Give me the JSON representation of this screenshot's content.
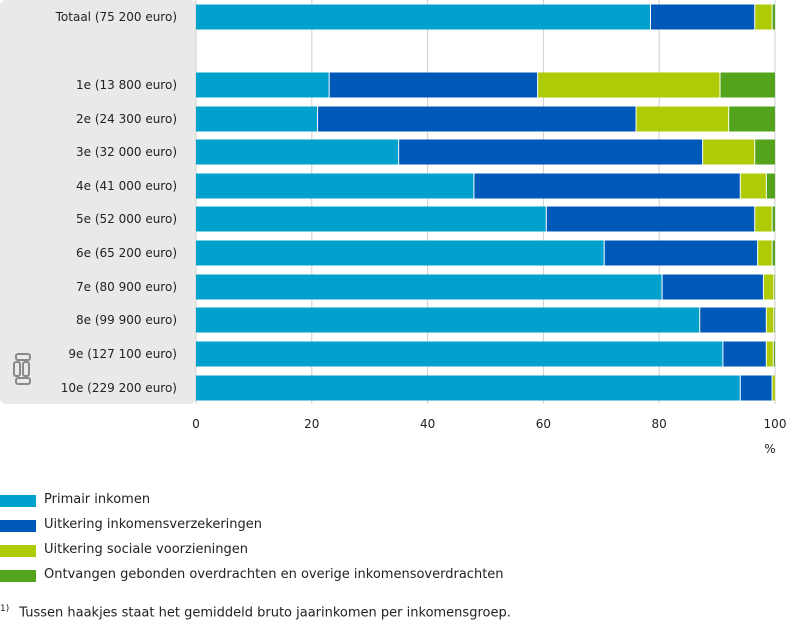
{
  "colors": {
    "primair": "#00a1cd",
    "verzekeringen": "#0058b8",
    "voorzieningen": "#afcb05",
    "overdrachten": "#53a31d",
    "panel": "#e9e9e9",
    "grid": "#cfcfcf"
  },
  "chart_data": {
    "type": "bar",
    "orientation": "horizontal",
    "stacked": true,
    "categories": [
      "Totaal (75 200 euro)",
      "1e (13 800 euro)",
      "2e (24 300 euro)",
      "3e (32 000 euro)",
      "4e (41 000 euro)",
      "5e (52 000 euro)",
      "6e (65 200 euro)",
      "7e (80 900 euro)",
      "8e (99 900 euro)",
      "9e (127 100 euro)",
      "10e (229 200 euro)"
    ],
    "series": [
      {
        "name": "Primair inkomen",
        "color_key": "primair",
        "values": [
          78.5,
          23,
          21,
          35,
          48,
          60.5,
          70.5,
          80.5,
          87,
          91,
          94
        ]
      },
      {
        "name": "Uitkering inkomensverzekeringen",
        "color_key": "verzekeringen",
        "values": [
          18,
          36,
          55,
          52.5,
          46,
          36,
          26.5,
          17.5,
          11.5,
          7.5,
          5.5
        ]
      },
      {
        "name": "Uitkering sociale voorzieningen",
        "color_key": "voorzieningen",
        "values": [
          3,
          31.5,
          16,
          9,
          4.5,
          3,
          2.5,
          1.8,
          1.3,
          1.2,
          0.7
        ]
      },
      {
        "name": "Ontvangen gebonden overdrachten en overige inkomensoverdrachten",
        "color_key": "overdrachten",
        "values": [
          0.5,
          9.5,
          8,
          3.5,
          1.5,
          0.5,
          0.5,
          0.2,
          0.2,
          0.3,
          0.3
        ]
      }
    ],
    "xlim": [
      0,
      100
    ],
    "xticks": [
      "0",
      "20",
      "40",
      "60",
      "80",
      "100"
    ],
    "xunit": "%"
  },
  "legend": [
    {
      "label": "Primair inkomen",
      "color_key": "primair"
    },
    {
      "label": "Uitkering inkomensverzekeringen",
      "color_key": "verzekeringen"
    },
    {
      "label": "Uitkering sociale voorzieningen",
      "color_key": "voorzieningen"
    },
    {
      "label": "Ontvangen gebonden overdrachten en overige inkomensoverdrachten",
      "color_key": "overdrachten"
    }
  ],
  "footnote": {
    "mark": "1)",
    "text": "Tussen haakjes staat het gemiddeld bruto jaarinkomen per inkomensgroep."
  },
  "logo": {
    "text": "cbs",
    "icon": "cbs-logo-icon"
  }
}
